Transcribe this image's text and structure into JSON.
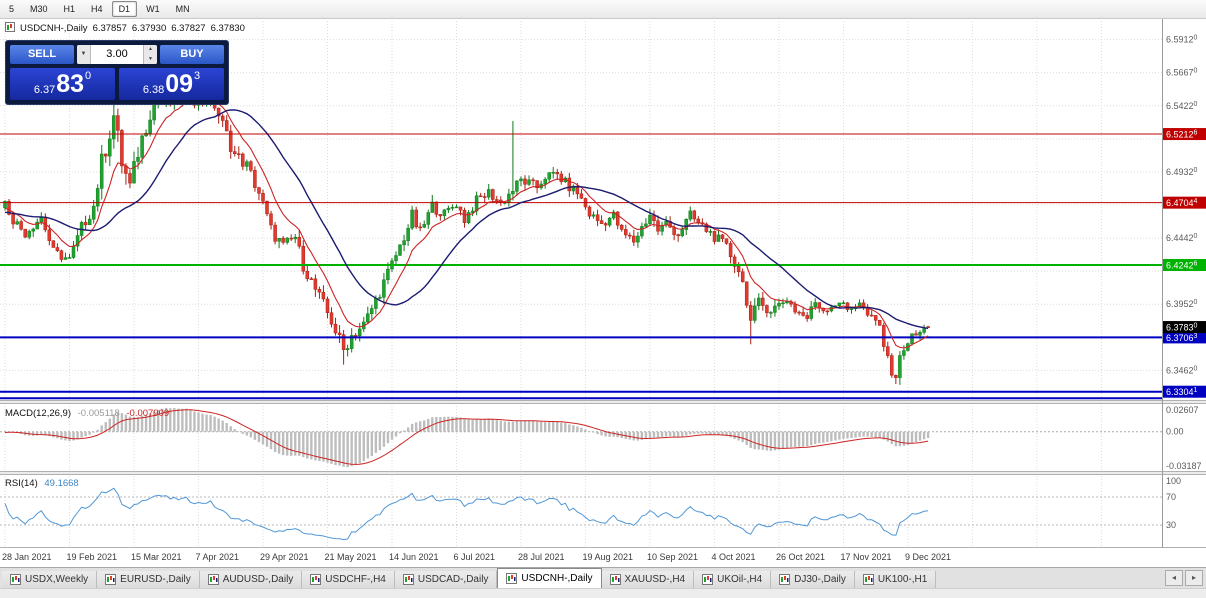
{
  "toolbar": {
    "timeframes": [
      "5",
      "M30",
      "H1",
      "H4",
      "D1",
      "W1",
      "MN"
    ],
    "active": "D1"
  },
  "chart": {
    "symbol_title": "USDCNH-,Daily",
    "ohlc": {
      "open": "6.37857",
      "high": "6.37930",
      "low": "6.37827",
      "close": "6.37830"
    },
    "one_click": {
      "sell_label": "SELL",
      "buy_label": "BUY",
      "volume": "3.00",
      "sell_price": {
        "prefix": "6.37",
        "big": "83",
        "sup": "0"
      },
      "buy_price": {
        "prefix": "6.38",
        "big": "09",
        "sup": "3"
      }
    },
    "price_axis": {
      "labels": [
        "6.59120",
        "6.56670",
        "6.54220",
        "6.49320",
        "6.44420",
        "6.39520",
        "6.34620"
      ],
      "grid_prices": [
        6.5912,
        6.5667,
        6.5422,
        6.5177,
        6.4932,
        6.4687,
        6.4442,
        6.4197,
        6.3952,
        6.3707,
        6.3462,
        6.3217
      ]
    },
    "hlines": [
      {
        "price": 6.52126,
        "label": "6.52126",
        "color": "#c00000",
        "width": 1
      },
      {
        "price": 6.47044,
        "label": "6.47044",
        "color": "#c00000",
        "width": 1
      },
      {
        "price": 6.42426,
        "label": "6.42426",
        "color": "#00b200",
        "width": 2
      },
      {
        "price": 6.37063,
        "label": "6.37063",
        "color": "#0000c0",
        "width": 2
      },
      {
        "price": 6.33041,
        "label": "6.33041",
        "color": "#0000c0",
        "width": 2
      },
      {
        "price": 6.3256,
        "label": "",
        "color": "#0000c0",
        "width": 2
      }
    ],
    "current_price_badge": {
      "label": "6.37830",
      "bg": "#000000"
    }
  },
  "indicators": {
    "macd": {
      "name": "MACD(12,26,9)",
      "value_main": "-0.005118",
      "value_signal": "-0.007909",
      "axis": [
        "0.02607",
        "0.00",
        "-0.03187"
      ],
      "fast": 12,
      "slow": 26,
      "signal": 9
    },
    "rsi": {
      "name": "RSI(14)",
      "value": "49.1668",
      "axis": [
        "100",
        "70",
        "30"
      ],
      "levels": [
        70,
        30
      ],
      "period": 14
    }
  },
  "chart_data": {
    "type": "candlestick",
    "instrument": "USDCNH",
    "period": "Daily",
    "x_labels": [
      "28 Jan 2021",
      "19 Feb 2021",
      "15 Mar 2021",
      "7 Apr 2021",
      "29 Apr 2021",
      "21 May 2021",
      "14 Jun 2021",
      "6 Jul 2021",
      "28 Jul 2021",
      "19 Aug 2021",
      "10 Sep 2021",
      "4 Oct 2021",
      "26 Oct 2021",
      "17 Nov 2021",
      "9 Dec 2021"
    ],
    "y_range": [
      6.325,
      6.605
    ],
    "levels": {
      "resistance": [
        6.52126,
        6.47044
      ],
      "pivot": 6.42426,
      "support": [
        6.37063,
        6.33041
      ]
    },
    "last_ohlc": [
      6.37857,
      6.3793,
      6.37827,
      6.3783
    ],
    "price_anchors": [
      [
        -45,
        6.468,
        0.005
      ],
      [
        -30,
        6.474,
        0.005
      ],
      [
        -15,
        6.46,
        0.005
      ],
      [
        -5,
        6.466,
        0.005
      ],
      [
        0,
        6.47,
        0.005
      ],
      [
        2,
        6.458,
        0.005
      ],
      [
        5,
        6.448,
        0.005
      ],
      [
        9,
        6.46,
        0.005
      ],
      [
        12,
        6.434,
        0.005
      ],
      [
        16,
        6.428,
        0.005
      ],
      [
        19,
        6.452,
        0.006
      ],
      [
        22,
        6.468,
        0.007
      ],
      [
        24,
        6.5,
        0.01
      ],
      [
        27,
        6.535,
        0.012
      ],
      [
        29,
        6.5,
        0.01
      ],
      [
        31,
        6.482,
        0.009
      ],
      [
        33,
        6.508,
        0.009
      ],
      [
        36,
        6.538,
        0.009
      ],
      [
        38,
        6.55,
        0.008
      ],
      [
        41,
        6.544,
        0.007
      ],
      [
        45,
        6.552,
        0.007
      ],
      [
        48,
        6.545,
        0.006
      ],
      [
        51,
        6.55,
        0.006
      ],
      [
        54,
        6.528,
        0.007
      ],
      [
        57,
        6.506,
        0.007
      ],
      [
        60,
        6.498,
        0.006
      ],
      [
        63,
        6.478,
        0.007
      ],
      [
        66,
        6.45,
        0.007
      ],
      [
        69,
        6.438,
        0.006
      ],
      [
        72,
        6.445,
        0.006
      ],
      [
        74,
        6.424,
        0.006
      ],
      [
        78,
        6.4,
        0.007
      ],
      [
        81,
        6.383,
        0.007
      ],
      [
        84,
        6.361,
        0.007
      ],
      [
        86,
        6.372,
        0.006
      ],
      [
        89,
        6.38,
        0.006
      ],
      [
        92,
        6.398,
        0.006
      ],
      [
        95,
        6.418,
        0.006
      ],
      [
        98,
        6.438,
        0.006
      ],
      [
        101,
        6.46,
        0.007
      ],
      [
        103,
        6.448,
        0.006
      ],
      [
        106,
        6.468,
        0.006
      ],
      [
        109,
        6.462,
        0.005
      ],
      [
        112,
        6.47,
        0.005
      ],
      [
        114,
        6.458,
        0.005
      ],
      [
        117,
        6.472,
        0.005
      ],
      [
        120,
        6.478,
        0.005
      ],
      [
        123,
        6.47,
        0.005
      ],
      [
        126,
        6.48,
        0.006
      ],
      [
        128,
        6.487,
        0.005
      ],
      [
        132,
        6.482,
        0.005
      ],
      [
        134,
        6.49,
        0.005
      ],
      [
        137,
        6.491,
        0.005
      ],
      [
        140,
        6.482,
        0.005
      ],
      [
        142,
        6.478,
        0.005
      ],
      [
        145,
        6.462,
        0.005
      ],
      [
        148,
        6.455,
        0.005
      ],
      [
        151,
        6.461,
        0.005
      ],
      [
        153,
        6.448,
        0.005
      ],
      [
        156,
        6.442,
        0.005
      ],
      [
        160,
        6.462,
        0.006
      ],
      [
        162,
        6.45,
        0.005
      ],
      [
        164,
        6.455,
        0.005
      ],
      [
        167,
        6.447,
        0.005
      ],
      [
        170,
        6.461,
        0.005
      ],
      [
        172,
        6.455,
        0.005
      ],
      [
        175,
        6.448,
        0.005
      ],
      [
        179,
        6.437,
        0.006
      ],
      [
        182,
        6.421,
        0.007
      ],
      [
        184,
        6.4,
        0.008
      ],
      [
        185,
        6.382,
        0.008
      ],
      [
        187,
        6.396,
        0.006
      ],
      [
        190,
        6.391,
        0.005
      ],
      [
        194,
        6.399,
        0.005
      ],
      [
        196,
        6.391,
        0.005
      ],
      [
        199,
        6.385,
        0.005
      ],
      [
        201,
        6.397,
        0.005
      ],
      [
        203,
        6.391,
        0.004
      ],
      [
        207,
        6.397,
        0.004
      ],
      [
        209,
        6.391,
        0.004
      ],
      [
        212,
        6.397,
        0.004
      ],
      [
        214,
        6.387,
        0.004
      ],
      [
        217,
        6.379,
        0.005
      ],
      [
        219,
        6.352,
        0.007
      ],
      [
        221,
        6.343,
        0.007
      ],
      [
        223,
        6.364,
        0.006
      ],
      [
        225,
        6.371,
        0.004
      ],
      [
        227,
        6.374,
        0.004
      ],
      [
        229,
        6.378,
        0.004
      ]
    ],
    "wick_overrides": [
      [
        27,
        "high",
        6.5515
      ],
      [
        38,
        "high",
        6.5572
      ],
      [
        84,
        "low",
        6.3505
      ],
      [
        126,
        "high",
        6.531
      ],
      [
        185,
        "low",
        6.3655
      ],
      [
        221,
        "low",
        6.337
      ]
    ],
    "moving_averages": [
      {
        "type": "ema",
        "period": 9,
        "color": "#cc2424"
      },
      {
        "type": "sma",
        "period": 24,
        "color": "#1b1b70"
      }
    ]
  },
  "tabs": {
    "active_index": 5,
    "items": [
      "USDX,Weekly",
      "EURUSD-,Daily",
      "AUDUSD-,Daily",
      "USDCHF-,H4",
      "USDCAD-,Daily",
      "USDCNH-,Daily",
      "XAUUSD-,H4",
      "UKOil-,H4",
      "DJ30-,Daily",
      "UK100-,H1"
    ]
  },
  "colors": {
    "up": "#1fa32e",
    "up_stroke": "#127a1d",
    "down": "#e23a2e",
    "down_stroke": "#a81f15",
    "grid": "#dcdcdc",
    "axis_text": "#5a5a5a",
    "macd_hist": "#bdbdbd",
    "macd_signal": "#cc2424",
    "rsi_line": "#4f97d7",
    "panel_bg": "#0c1a3e",
    "button_blue": "#2b56c8",
    "tile_blue": "#1c32b4"
  }
}
